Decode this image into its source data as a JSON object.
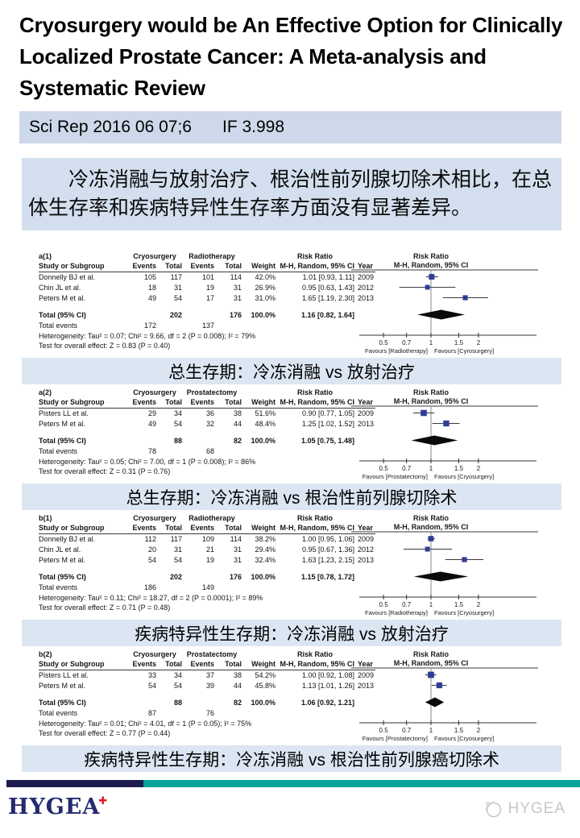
{
  "title": "Cryosurgery would be An Effective Option for Clinically Localized Prostate Cancer: A Meta-analysis and Systematic Review",
  "journal_bar": {
    "citation": "Sci Rep 2016 06 07;6",
    "impact_factor": "IF 3.998"
  },
  "summary_cn": "冷冻消融与放射治疗、根治性前列腺切除术相比，在总体生存率和疾病特异性生存率方面没有显著差异。",
  "footer": {
    "logo_text": "HYGEA",
    "logo_cross": "✚",
    "watermark_text": "HYGEA"
  },
  "colors": {
    "subtitle_bar_bg": "#cdd9ea",
    "summary_bg": "#d3dfee",
    "caption_bg": "#dce6f3",
    "panel_label_blue": "#4472c4",
    "marker_blue": "#2e3d98",
    "footer_navy": "#1c1c4e",
    "footer_teal": "#03a29b",
    "logo_navy": "#232a6d",
    "logo_red": "#e01b22",
    "watermark_gray": "#c7c7c7"
  },
  "chart_data": [
    {
      "type": "forest",
      "panel_label": "a(1)",
      "caption_cn": "总生存期：冷冻消融 vs 放射治疗",
      "group1": "Cryosurgery",
      "group2": "Radiotherapy",
      "effect_header": "Risk Ratio",
      "effect_subheader": "M-H, Random, 95% CI",
      "columns": [
        "Study or Subgroup",
        "Events",
        "Total",
        "Events",
        "Total",
        "Weight",
        "M-H, Random, 95% CI",
        "Year"
      ],
      "studies": [
        {
          "name": "Donnelly BJ et al.",
          "events1": 105,
          "total1": 117,
          "events2": 101,
          "total2": 114,
          "weight_pct": 42.0,
          "weight": "42.0%",
          "rr": 1.01,
          "ci_lo": 0.93,
          "ci_hi": 1.11,
          "ci_label": "1.01 [0.93, 1.11]",
          "year": "2009"
        },
        {
          "name": "Chin JL et al.",
          "events1": 18,
          "total1": 31,
          "events2": 19,
          "total2": 31,
          "weight_pct": 26.9,
          "weight": "26.9%",
          "rr": 0.95,
          "ci_lo": 0.63,
          "ci_hi": 1.43,
          "ci_label": "0.95 [0.63, 1.43]",
          "year": "2012"
        },
        {
          "name": "Peters M et al.",
          "events1": 49,
          "total1": 54,
          "events2": 17,
          "total2": 31,
          "weight_pct": 31.0,
          "weight": "31.0%",
          "rr": 1.65,
          "ci_lo": 1.19,
          "ci_hi": 2.3,
          "ci_label": "1.65 [1.19, 2.30]",
          "year": "2013"
        }
      ],
      "total": {
        "label": "Total (95% CI)",
        "total1": 202,
        "total2": 176,
        "weight": "100.0%",
        "rr": 1.16,
        "ci_lo": 0.82,
        "ci_hi": 1.64,
        "ci_label": "1.16 [0.82, 1.64]"
      },
      "total_events": {
        "label": "Total events",
        "events1": 172,
        "events2": 137
      },
      "heterogeneity": "Heterogeneity: Tau² = 0.07; Chi² = 9.66, df = 2 (P = 0.008); I² = 79%",
      "overall_effect": "Test for overall effect: Z = 0.83 (P = 0.40)",
      "axis_ticks": [
        0.5,
        0.7,
        1,
        1.5,
        2
      ],
      "favours_left": "Favours [Radiotherapy]",
      "favours_right": "Favours [Cyrosurgery]"
    },
    {
      "type": "forest",
      "panel_label": "a(2)",
      "caption_cn": "总生存期：冷冻消融 vs 根治性前列腺切除术",
      "group1": "Cryosurgery",
      "group2": "Prostatectomy",
      "effect_header": "Risk Ratio",
      "effect_subheader": "M-H, Random, 95% CI",
      "columns": [
        "Study or Subgroup",
        "Events",
        "Total",
        "Events",
        "Total",
        "Weight",
        "M-H, Random, 95% CI",
        "Year"
      ],
      "studies": [
        {
          "name": "Pisters LL et al.",
          "events1": 29,
          "total1": 34,
          "events2": 36,
          "total2": 38,
          "weight_pct": 51.6,
          "weight": "51.6%",
          "rr": 0.9,
          "ci_lo": 0.77,
          "ci_hi": 1.05,
          "ci_label": "0.90 [0.77, 1.05]",
          "year": "2009"
        },
        {
          "name": "Peters M et al.",
          "events1": 49,
          "total1": 54,
          "events2": 32,
          "total2": 44,
          "weight_pct": 48.4,
          "weight": "48.4%",
          "rr": 1.25,
          "ci_lo": 1.02,
          "ci_hi": 1.52,
          "ci_label": "1.25 [1.02, 1.52]",
          "year": "2013"
        }
      ],
      "total": {
        "label": "Total (95% CI)",
        "total1": 88,
        "total2": 82,
        "weight": "100.0%",
        "rr": 1.05,
        "ci_lo": 0.75,
        "ci_hi": 1.48,
        "ci_label": "1.05 [0.75, 1.48]"
      },
      "total_events": {
        "label": "Total events",
        "events1": 78,
        "events2": 68
      },
      "heterogeneity": "Heterogeneity: Tau² = 0.05; Chi² = 7.00, df = 1 (P = 0.008); I² = 86%",
      "overall_effect": "Test for overall effect: Z = 0.31 (P = 0.76)",
      "axis_ticks": [
        0.5,
        0.7,
        1,
        1.5,
        2
      ],
      "favours_left": "Favours [Prostatectomy]",
      "favours_right": "Favours [Cryosurgery]"
    },
    {
      "type": "forest",
      "panel_label": "b(1)",
      "caption_cn": "疾病特异性生存期：冷冻消融 vs 放射治疗",
      "group1": "Cryosurgery",
      "group2": "Radiotherapy",
      "effect_header": "Risk Ratio",
      "effect_subheader": "M-H, Random, 95% CI",
      "columns": [
        "Study or Subgroup",
        "Events",
        "Total",
        "Events",
        "Total",
        "Weight",
        "M-H, Random, 95% CI",
        "Year"
      ],
      "studies": [
        {
          "name": "Donnelly BJ et al.",
          "events1": 112,
          "total1": 117,
          "events2": 109,
          "total2": 114,
          "weight_pct": 38.2,
          "weight": "38.2%",
          "rr": 1.0,
          "ci_lo": 0.95,
          "ci_hi": 1.06,
          "ci_label": "1.00 [0.95, 1.06]",
          "year": "2009"
        },
        {
          "name": "Chin JL et al.",
          "events1": 20,
          "total1": 31,
          "events2": 21,
          "total2": 31,
          "weight_pct": 29.4,
          "weight": "29.4%",
          "rr": 0.95,
          "ci_lo": 0.67,
          "ci_hi": 1.36,
          "ci_label": "0.95 [0.67, 1.36]",
          "year": "2012"
        },
        {
          "name": "Peters M et al.",
          "events1": 54,
          "total1": 54,
          "events2": 19,
          "total2": 31,
          "weight_pct": 32.4,
          "weight": "32.4%",
          "rr": 1.63,
          "ci_lo": 1.23,
          "ci_hi": 2.15,
          "ci_label": "1.63 [1.23, 2.15]",
          "year": "2013"
        }
      ],
      "total": {
        "label": "Total (95% CI)",
        "total1": 202,
        "total2": 176,
        "weight": "100.0%",
        "rr": 1.15,
        "ci_lo": 0.78,
        "ci_hi": 1.72,
        "ci_label": "1.15 [0.78, 1.72]"
      },
      "total_events": {
        "label": "Total events",
        "events1": 186,
        "events2": 149
      },
      "heterogeneity": "Heterogeneity: Tau² = 0.11; Chi² = 18.27, df = 2 (P = 0.0001); I² = 89%",
      "overall_effect": "Test for overall effect: Z = 0.71 (P = 0.48)",
      "axis_ticks": [
        0.5,
        0.7,
        1,
        1.5,
        2
      ],
      "favours_left": "Favours [Radiotherapy]",
      "favours_right": "Favours [Cryosurgery]"
    },
    {
      "type": "forest",
      "panel_label": "b(2)",
      "caption_cn": "疾病特异性生存期：冷冻消融 vs 根治性前列腺癌切除术",
      "group1": "Cryosurgery",
      "group2": "Prostatectomy",
      "effect_header": "Risk Ratio",
      "effect_subheader": "M-H, Random, 95% CI",
      "columns": [
        "Study or Subgroup",
        "Events",
        "Total",
        "Events",
        "Total",
        "Weight",
        "M-H, Random, 95% CI",
        "Year"
      ],
      "studies": [
        {
          "name": "Pisters LL et al.",
          "events1": 33,
          "total1": 34,
          "events2": 37,
          "total2": 38,
          "weight_pct": 54.2,
          "weight": "54.2%",
          "rr": 1.0,
          "ci_lo": 0.92,
          "ci_hi": 1.08,
          "ci_label": "1.00 [0.92, 1.08]",
          "year": "2009"
        },
        {
          "name": "Peters M et al.",
          "events1": 54,
          "total1": 54,
          "events2": 39,
          "total2": 44,
          "weight_pct": 45.8,
          "weight": "45.8%",
          "rr": 1.13,
          "ci_lo": 1.01,
          "ci_hi": 1.26,
          "ci_label": "1.13 [1.01, 1.26]",
          "year": "2013"
        }
      ],
      "total": {
        "label": "Total (95% CI)",
        "total1": 88,
        "total2": 82,
        "weight": "100.0%",
        "rr": 1.06,
        "ci_lo": 0.92,
        "ci_hi": 1.21,
        "ci_label": "1.06 [0.92, 1.21]"
      },
      "total_events": {
        "label": "Total events",
        "events1": 87,
        "events2": 76
      },
      "heterogeneity": "Heterogeneity: Tau² = 0.01; Chi² = 4.01, df = 1 (P = 0.05); I² = 75%",
      "overall_effect": "Test for overall effect: Z = 0.77 (P = 0.44)",
      "axis_ticks": [
        0.5,
        0.7,
        1,
        1.5,
        2
      ],
      "favours_left": "Favours [Prostatectomy]",
      "favours_right": "Favours [Cryosurgery]"
    }
  ]
}
